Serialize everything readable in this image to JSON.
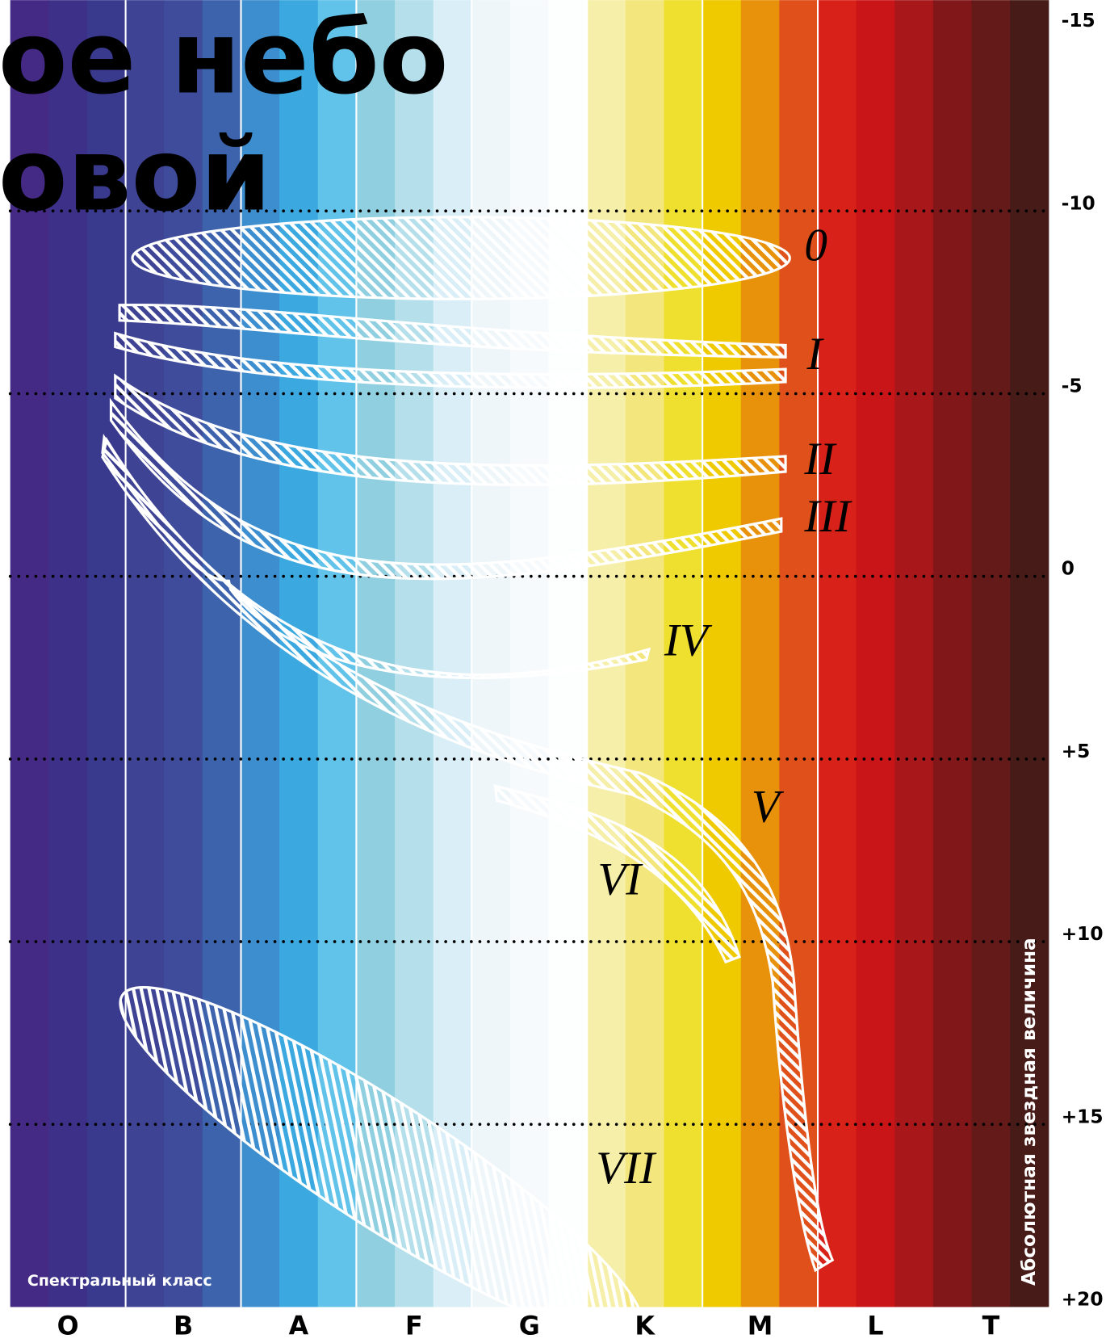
{
  "chart_data": {
    "type": "hr-diagram",
    "title_lines": [
      "ое небо",
      "овой"
    ],
    "x_label": "Спектральный класс",
    "y_label": "Абсолютная звездная величина",
    "categories": [
      "O",
      "B",
      "A",
      "F",
      "G",
      "K",
      "M",
      "L",
      "T"
    ],
    "stripe_colors": [
      "#452a85",
      "#3d3088",
      "#39398e",
      "#3f4394",
      "#3f4c9c",
      "#3d63ad",
      "#3d8ecf",
      "#3ba9e0",
      "#62c3ea",
      "#8fcfe0",
      "#b5dfea",
      "#d9eef6",
      "#eef6fa",
      "#f7fafc",
      "#fdfefe",
      "#f5efa9",
      "#f3e67c",
      "#efe030",
      "#f0ca00",
      "#e8920c",
      "#e0501a",
      "#d82118",
      "#c91518",
      "#a8171a",
      "#82171a",
      "#641a19",
      "#461b18"
    ],
    "ylim": [
      -15,
      20
    ],
    "yticks": [
      -15,
      -10,
      -5,
      0,
      {
        "value": 5,
        "label": "+5"
      },
      {
        "value": 10,
        "label": "+10"
      },
      {
        "value": 15,
        "label": "+15"
      },
      {
        "value": 20,
        "label": "+20"
      }
    ],
    "grid": true,
    "luminosity_classes": [
      "0",
      "I",
      "II",
      "III",
      "IV",
      "V",
      "VI",
      "VII"
    ]
  }
}
